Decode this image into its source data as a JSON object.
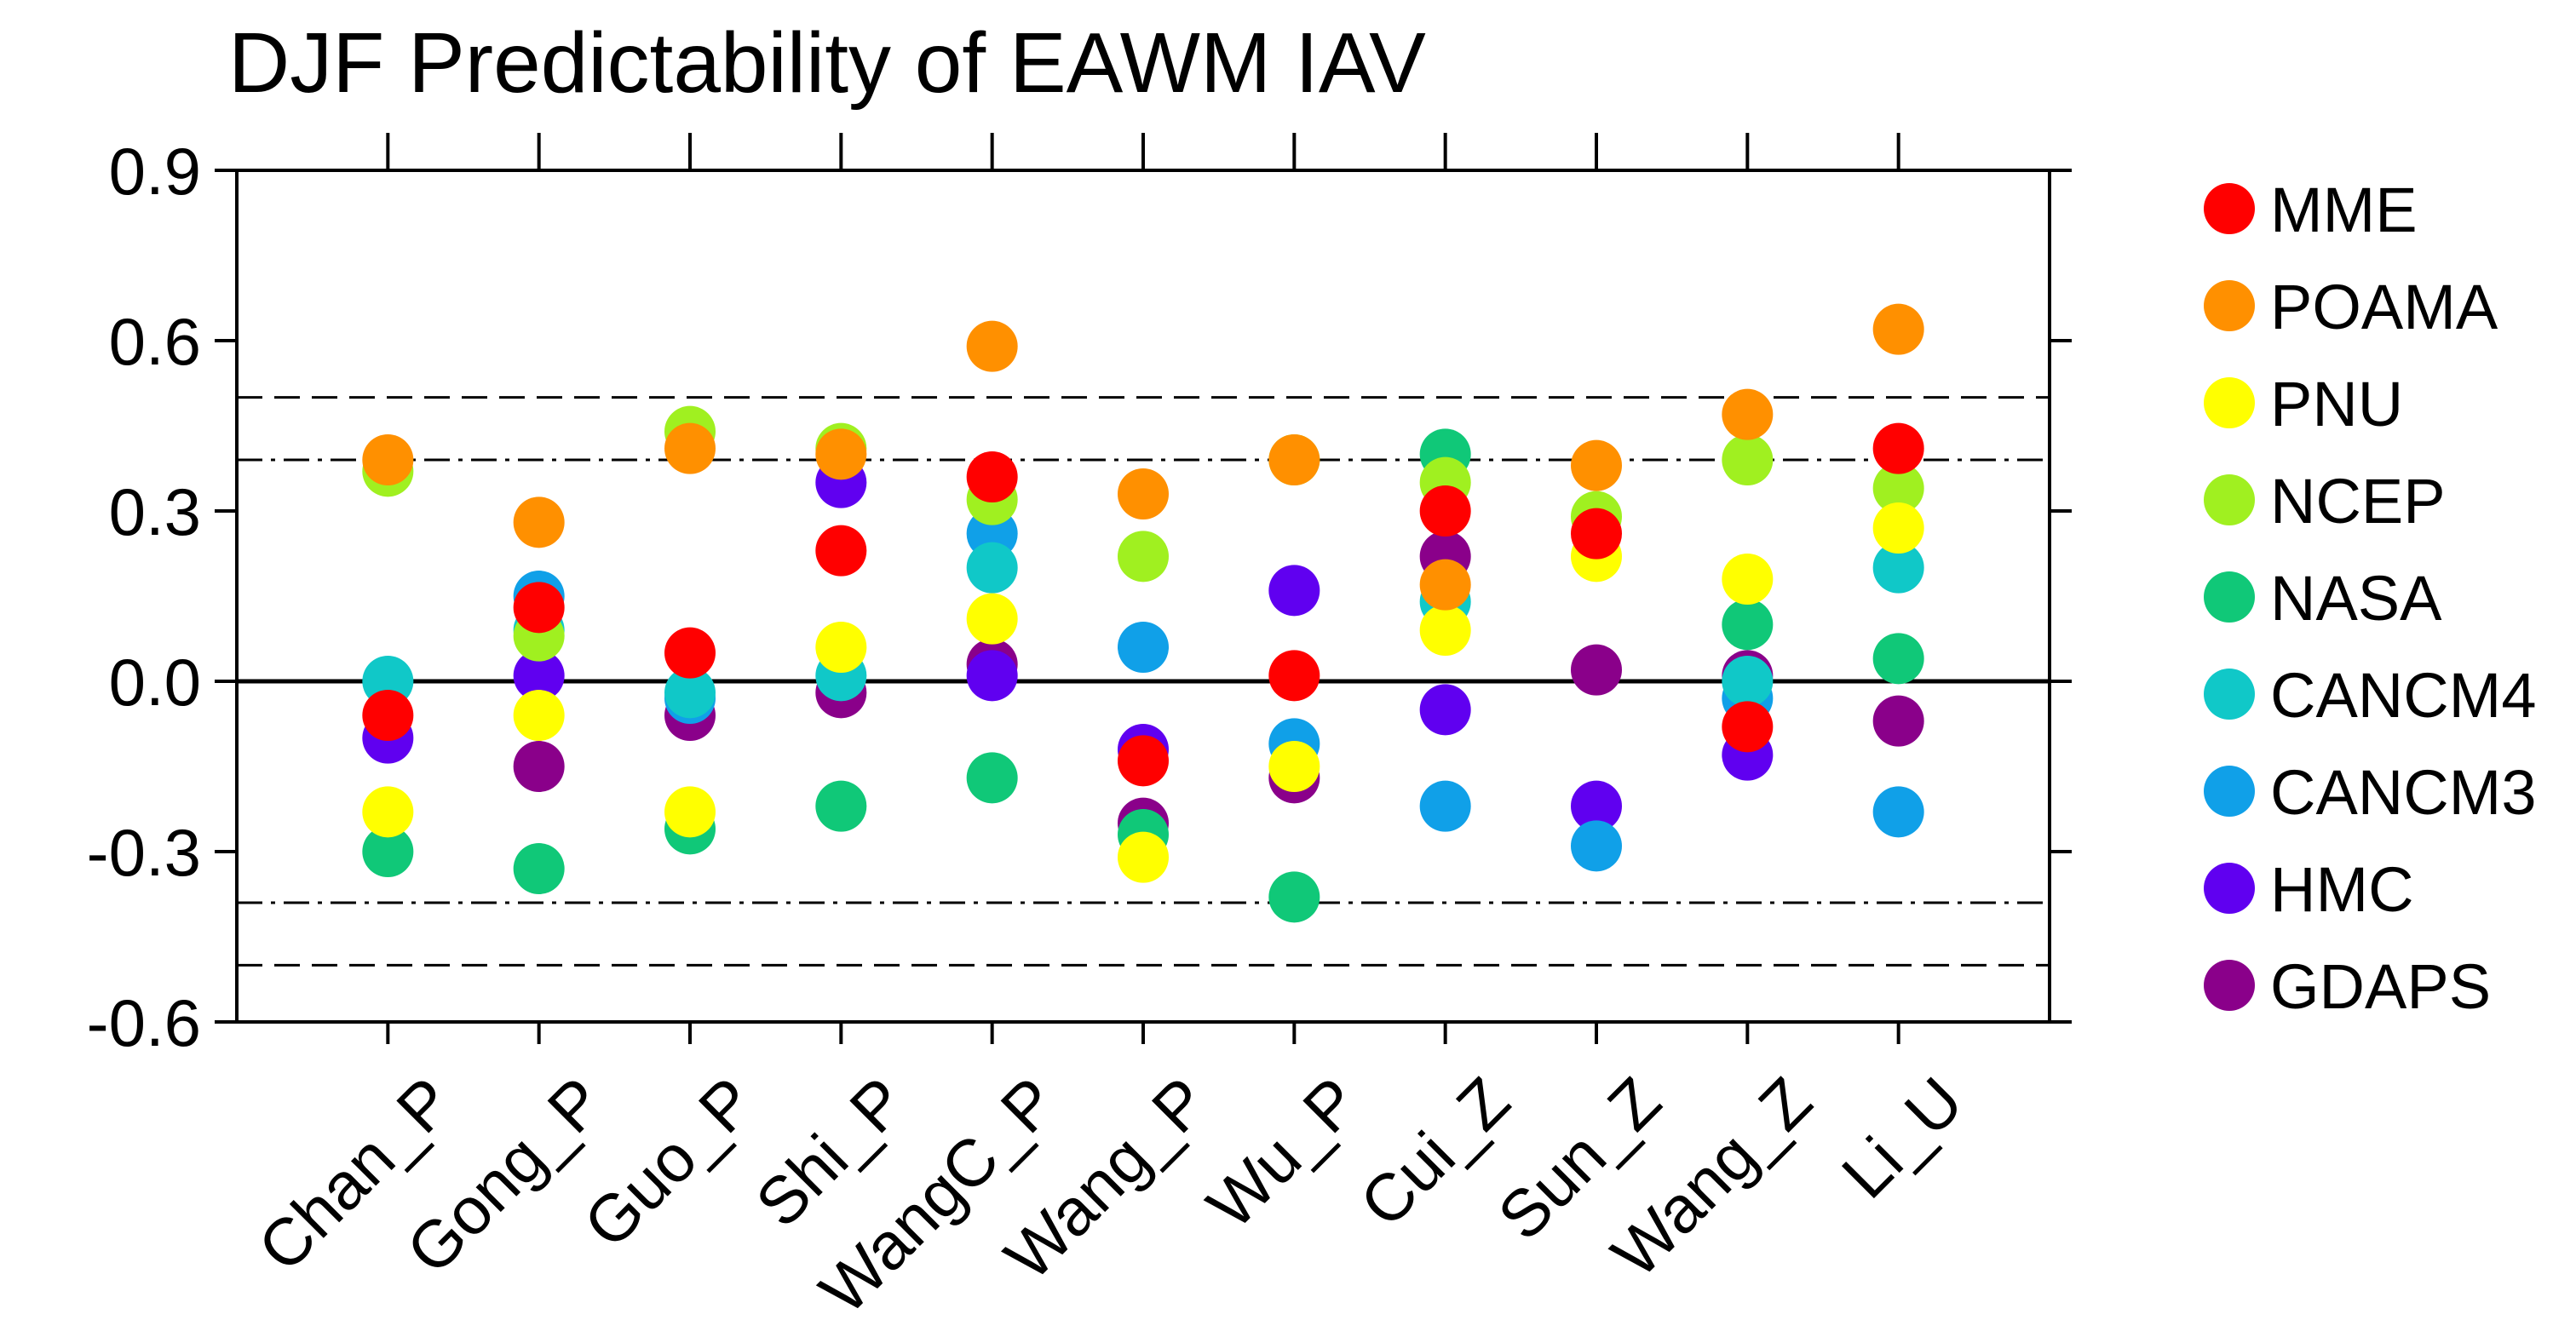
{
  "chart_data": {
    "type": "scatter",
    "title": "DJF Predictability of EAWM IAV",
    "xlabel": "",
    "ylabel": "",
    "ylim": [
      -0.6,
      0.9
    ],
    "yticks": [
      0.9,
      0.6,
      0.3,
      0.0,
      -0.3,
      -0.6
    ],
    "ytick_labels": [
      "0.9",
      "0.6",
      "0.3",
      "0.0",
      "-0.3",
      "-0.6"
    ],
    "categories": [
      "Chan_P",
      "Gong_P",
      "Guo_P",
      "Shi_P",
      "WangC_P",
      "Wang_P",
      "Wu_P",
      "Cui_Z",
      "Sun_Z",
      "Wang_Z",
      "Li_U"
    ],
    "reference_lines": [
      {
        "value": 0.0,
        "style": "solid"
      },
      {
        "value": 0.5,
        "style": "dashed"
      },
      {
        "value": -0.5,
        "style": "dashed"
      },
      {
        "value": 0.39,
        "style": "dashdot"
      },
      {
        "value": -0.39,
        "style": "dashdot"
      }
    ],
    "legend_position": "right",
    "series": [
      {
        "name": "GDAPS",
        "color": "#8a008a",
        "values": [
          null,
          -0.15,
          -0.06,
          -0.02,
          0.03,
          -0.25,
          -0.17,
          0.22,
          0.02,
          0.01,
          -0.07
        ]
      },
      {
        "name": "HMC",
        "color": "#6000f0",
        "values": [
          -0.1,
          0.01,
          null,
          0.35,
          0.01,
          -0.12,
          0.16,
          -0.05,
          -0.22,
          -0.13,
          null
        ]
      },
      {
        "name": "CANCM3",
        "color": "#10a0e8",
        "values": [
          null,
          0.15,
          -0.03,
          null,
          0.26,
          0.06,
          -0.11,
          -0.22,
          -0.29,
          -0.03,
          -0.23
        ]
      },
      {
        "name": "CANCM4",
        "color": "#10c8c8",
        "values": [
          0.0,
          0.09,
          -0.02,
          0.01,
          0.2,
          null,
          null,
          0.14,
          null,
          0.0,
          0.2
        ]
      },
      {
        "name": "NASA",
        "color": "#10c878",
        "values": [
          -0.3,
          -0.33,
          -0.26,
          -0.22,
          -0.17,
          -0.27,
          -0.38,
          0.4,
          null,
          0.1,
          0.04
        ]
      },
      {
        "name": "NCEP",
        "color": "#a0f020",
        "values": [
          0.37,
          0.08,
          0.44,
          0.41,
          0.32,
          0.22,
          0.39,
          0.35,
          0.29,
          0.39,
          0.34
        ]
      },
      {
        "name": "PNU",
        "color": "#ffff00",
        "values": [
          -0.23,
          -0.06,
          -0.23,
          0.06,
          0.11,
          -0.31,
          -0.15,
          0.09,
          0.22,
          0.18,
          0.27
        ]
      },
      {
        "name": "POAMA",
        "color": "#ff9000",
        "values": [
          0.39,
          0.28,
          0.41,
          0.4,
          0.59,
          0.33,
          0.39,
          0.17,
          0.38,
          0.47,
          0.62
        ]
      },
      {
        "name": "MME",
        "color": "#ff0000",
        "values": [
          -0.06,
          0.13,
          0.05,
          0.23,
          0.36,
          -0.14,
          0.01,
          0.3,
          0.26,
          -0.08,
          0.41
        ]
      }
    ],
    "legend_order": [
      "MME",
      "POAMA",
      "PNU",
      "NCEP",
      "NASA",
      "CANCM4",
      "CANCM3",
      "HMC",
      "GDAPS"
    ]
  }
}
